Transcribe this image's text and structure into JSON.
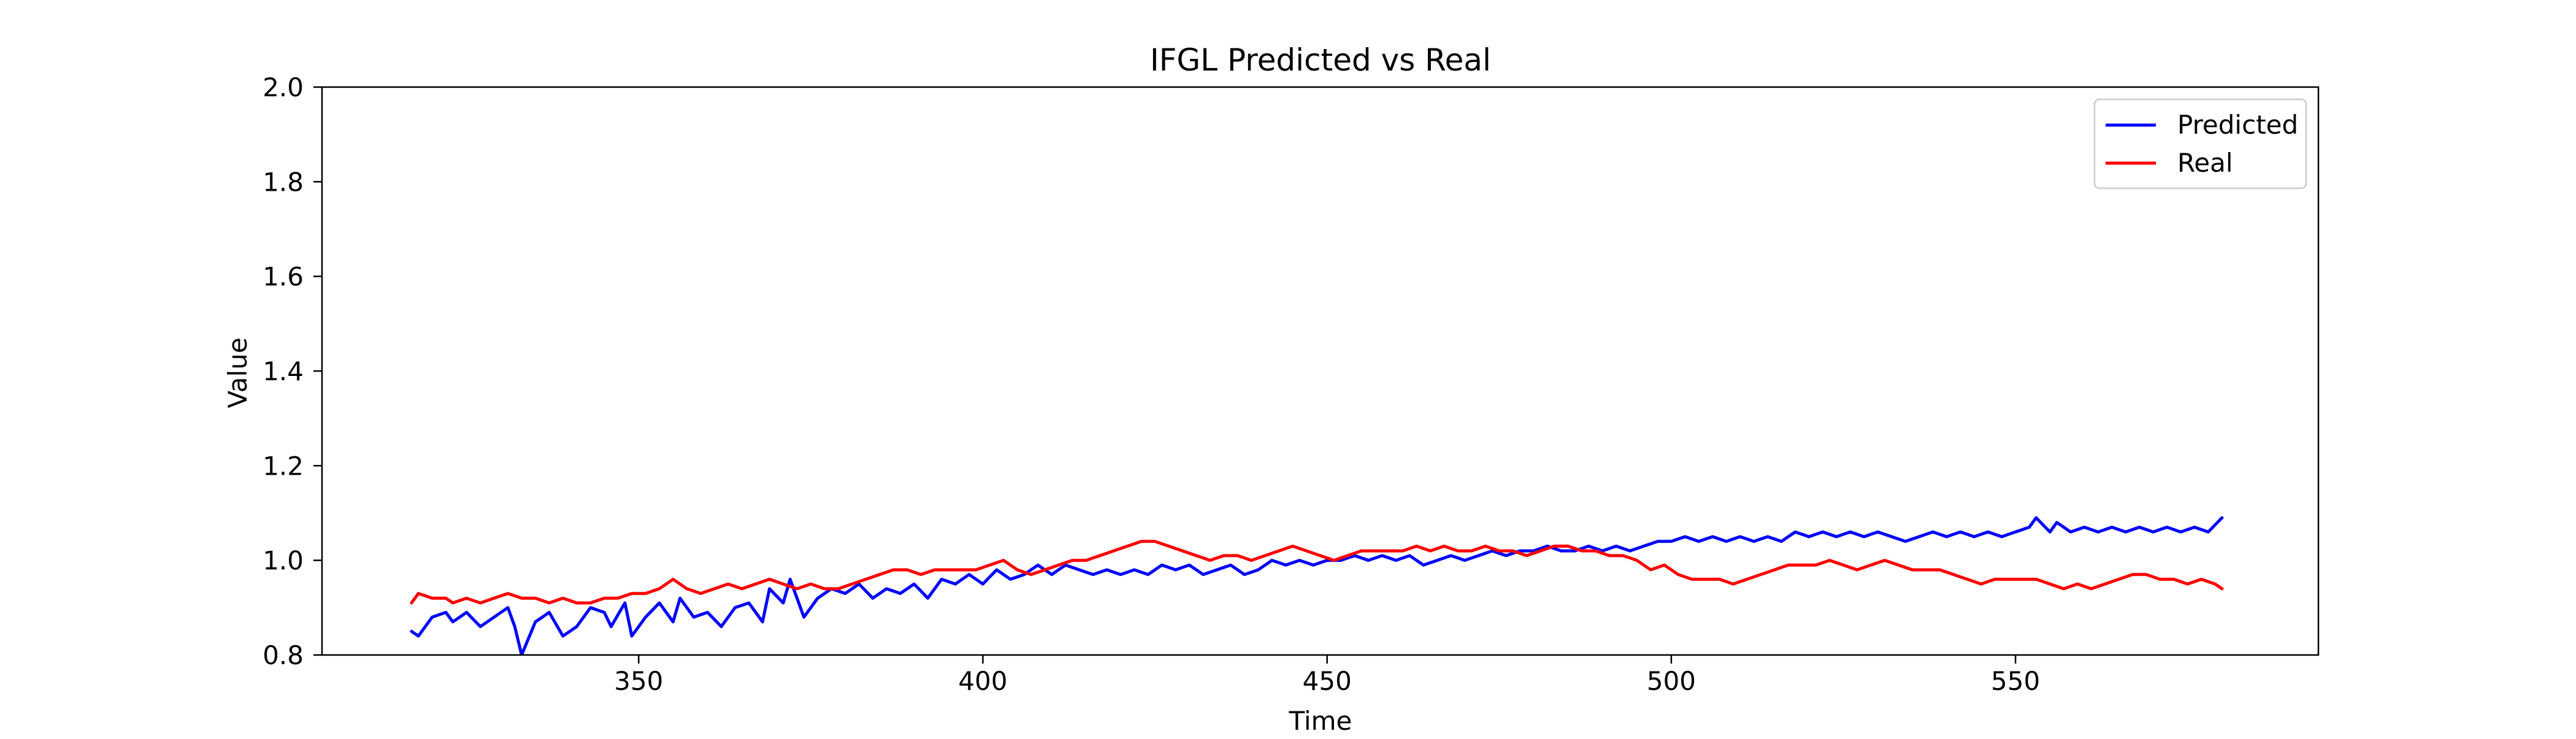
{
  "chart_data": {
    "type": "line",
    "title": "IFGL Predicted vs Real",
    "xlabel": "Time",
    "ylabel": "Value",
    "xlim": [
      304,
      594
    ],
    "ylim": [
      0.8,
      2.0
    ],
    "xticks": [
      350,
      400,
      450,
      500,
      550
    ],
    "yticks": [
      0.8,
      1.0,
      1.2,
      1.4,
      1.6,
      1.8,
      2.0
    ],
    "xtick_labels": [
      "350",
      "400",
      "450",
      "500",
      "550"
    ],
    "ytick_labels": [
      "0.8",
      "1.0",
      "1.2",
      "1.4",
      "1.6",
      "1.8",
      "2.0"
    ],
    "grid": false,
    "legend": "top-right",
    "x_start": 317,
    "x_end": 580,
    "series": [
      {
        "name": "Predicted",
        "color": "#0000ff",
        "keypoints": [
          [
            317,
            0.85
          ],
          [
            318,
            0.84
          ],
          [
            320,
            0.88
          ],
          [
            322,
            0.89
          ],
          [
            323,
            0.87
          ],
          [
            325,
            0.89
          ],
          [
            327,
            0.86
          ],
          [
            329,
            0.88
          ],
          [
            331,
            0.9
          ],
          [
            332,
            0.86
          ],
          [
            333,
            0.8
          ],
          [
            335,
            0.87
          ],
          [
            337,
            0.89
          ],
          [
            339,
            0.84
          ],
          [
            341,
            0.86
          ],
          [
            343,
            0.9
          ],
          [
            345,
            0.89
          ],
          [
            346,
            0.86
          ],
          [
            348,
            0.91
          ],
          [
            349,
            0.84
          ],
          [
            351,
            0.88
          ],
          [
            353,
            0.91
          ],
          [
            355,
            0.87
          ],
          [
            356,
            0.92
          ],
          [
            358,
            0.88
          ],
          [
            360,
            0.89
          ],
          [
            362,
            0.86
          ],
          [
            364,
            0.9
          ],
          [
            366,
            0.91
          ],
          [
            368,
            0.87
          ],
          [
            369,
            0.94
          ],
          [
            371,
            0.91
          ],
          [
            372,
            0.96
          ],
          [
            374,
            0.88
          ],
          [
            376,
            0.92
          ],
          [
            378,
            0.94
          ],
          [
            380,
            0.93
          ],
          [
            382,
            0.95
          ],
          [
            384,
            0.92
          ],
          [
            386,
            0.94
          ],
          [
            388,
            0.93
          ],
          [
            390,
            0.95
          ],
          [
            392,
            0.92
          ],
          [
            394,
            0.96
          ],
          [
            396,
            0.95
          ],
          [
            398,
            0.97
          ],
          [
            400,
            0.95
          ],
          [
            402,
            0.98
          ],
          [
            404,
            0.96
          ],
          [
            406,
            0.97
          ],
          [
            408,
            0.99
          ],
          [
            410,
            0.97
          ],
          [
            412,
            0.99
          ],
          [
            414,
            0.98
          ],
          [
            416,
            0.97
          ],
          [
            418,
            0.98
          ],
          [
            420,
            0.97
          ],
          [
            422,
            0.98
          ],
          [
            424,
            0.97
          ],
          [
            426,
            0.99
          ],
          [
            428,
            0.98
          ],
          [
            430,
            0.99
          ],
          [
            432,
            0.97
          ],
          [
            434,
            0.98
          ],
          [
            436,
            0.99
          ],
          [
            438,
            0.97
          ],
          [
            440,
            0.98
          ],
          [
            442,
            1.0
          ],
          [
            444,
            0.99
          ],
          [
            446,
            1.0
          ],
          [
            448,
            0.99
          ],
          [
            450,
            1.0
          ],
          [
            452,
            1.0
          ],
          [
            454,
            1.01
          ],
          [
            456,
            1.0
          ],
          [
            458,
            1.01
          ],
          [
            460,
            1.0
          ],
          [
            462,
            1.01
          ],
          [
            464,
            0.99
          ],
          [
            466,
            1.0
          ],
          [
            468,
            1.01
          ],
          [
            470,
            1.0
          ],
          [
            472,
            1.01
          ],
          [
            474,
            1.02
          ],
          [
            476,
            1.01
          ],
          [
            478,
            1.02
          ],
          [
            480,
            1.02
          ],
          [
            482,
            1.03
          ],
          [
            484,
            1.02
          ],
          [
            486,
            1.02
          ],
          [
            488,
            1.03
          ],
          [
            490,
            1.02
          ],
          [
            492,
            1.03
          ],
          [
            494,
            1.02
          ],
          [
            496,
            1.03
          ],
          [
            498,
            1.04
          ],
          [
            500,
            1.04
          ],
          [
            502,
            1.05
          ],
          [
            504,
            1.04
          ],
          [
            506,
            1.05
          ],
          [
            508,
            1.04
          ],
          [
            510,
            1.05
          ],
          [
            512,
            1.04
          ],
          [
            514,
            1.05
          ],
          [
            516,
            1.04
          ],
          [
            518,
            1.06
          ],
          [
            520,
            1.05
          ],
          [
            522,
            1.06
          ],
          [
            524,
            1.05
          ],
          [
            526,
            1.06
          ],
          [
            528,
            1.05
          ],
          [
            530,
            1.06
          ],
          [
            532,
            1.05
          ],
          [
            534,
            1.04
          ],
          [
            536,
            1.05
          ],
          [
            538,
            1.06
          ],
          [
            540,
            1.05
          ],
          [
            542,
            1.06
          ],
          [
            544,
            1.05
          ],
          [
            546,
            1.06
          ],
          [
            548,
            1.05
          ],
          [
            550,
            1.06
          ],
          [
            552,
            1.07
          ],
          [
            553,
            1.09
          ],
          [
            555,
            1.06
          ],
          [
            556,
            1.08
          ],
          [
            558,
            1.06
          ],
          [
            560,
            1.07
          ],
          [
            562,
            1.06
          ],
          [
            564,
            1.07
          ],
          [
            566,
            1.06
          ],
          [
            568,
            1.07
          ],
          [
            570,
            1.06
          ],
          [
            572,
            1.07
          ],
          [
            574,
            1.06
          ],
          [
            576,
            1.07
          ],
          [
            578,
            1.06
          ],
          [
            580,
            1.09
          ]
        ]
      },
      {
        "name": "Real",
        "color": "#ff0000",
        "keypoints": [
          [
            317,
            0.91
          ],
          [
            318,
            0.93
          ],
          [
            320,
            0.92
          ],
          [
            322,
            0.92
          ],
          [
            323,
            0.91
          ],
          [
            325,
            0.92
          ],
          [
            327,
            0.91
          ],
          [
            329,
            0.92
          ],
          [
            331,
            0.93
          ],
          [
            333,
            0.92
          ],
          [
            335,
            0.92
          ],
          [
            337,
            0.91
          ],
          [
            339,
            0.92
          ],
          [
            341,
            0.91
          ],
          [
            343,
            0.91
          ],
          [
            345,
            0.92
          ],
          [
            347,
            0.92
          ],
          [
            349,
            0.93
          ],
          [
            351,
            0.93
          ],
          [
            353,
            0.94
          ],
          [
            355,
            0.96
          ],
          [
            357,
            0.94
          ],
          [
            359,
            0.93
          ],
          [
            361,
            0.94
          ],
          [
            363,
            0.95
          ],
          [
            365,
            0.94
          ],
          [
            367,
            0.95
          ],
          [
            369,
            0.96
          ],
          [
            371,
            0.95
          ],
          [
            373,
            0.94
          ],
          [
            375,
            0.95
          ],
          [
            377,
            0.94
          ],
          [
            379,
            0.94
          ],
          [
            381,
            0.95
          ],
          [
            383,
            0.96
          ],
          [
            385,
            0.97
          ],
          [
            387,
            0.98
          ],
          [
            389,
            0.98
          ],
          [
            391,
            0.97
          ],
          [
            393,
            0.98
          ],
          [
            395,
            0.98
          ],
          [
            397,
            0.98
          ],
          [
            399,
            0.98
          ],
          [
            401,
            0.99
          ],
          [
            403,
            1.0
          ],
          [
            405,
            0.98
          ],
          [
            407,
            0.97
          ],
          [
            409,
            0.98
          ],
          [
            411,
            0.99
          ],
          [
            413,
            1.0
          ],
          [
            415,
            1.0
          ],
          [
            417,
            1.01
          ],
          [
            419,
            1.02
          ],
          [
            421,
            1.03
          ],
          [
            423,
            1.04
          ],
          [
            425,
            1.04
          ],
          [
            427,
            1.03
          ],
          [
            429,
            1.02
          ],
          [
            431,
            1.01
          ],
          [
            433,
            1.0
          ],
          [
            435,
            1.01
          ],
          [
            437,
            1.01
          ],
          [
            439,
            1.0
          ],
          [
            441,
            1.01
          ],
          [
            443,
            1.02
          ],
          [
            445,
            1.03
          ],
          [
            447,
            1.02
          ],
          [
            449,
            1.01
          ],
          [
            451,
            1.0
          ],
          [
            453,
            1.01
          ],
          [
            455,
            1.02
          ],
          [
            457,
            1.02
          ],
          [
            459,
            1.02
          ],
          [
            461,
            1.02
          ],
          [
            463,
            1.03
          ],
          [
            465,
            1.02
          ],
          [
            467,
            1.03
          ],
          [
            469,
            1.02
          ],
          [
            471,
            1.02
          ],
          [
            473,
            1.03
          ],
          [
            475,
            1.02
          ],
          [
            477,
            1.02
          ],
          [
            479,
            1.01
          ],
          [
            481,
            1.02
          ],
          [
            483,
            1.03
          ],
          [
            485,
            1.03
          ],
          [
            487,
            1.02
          ],
          [
            489,
            1.02
          ],
          [
            491,
            1.01
          ],
          [
            493,
            1.01
          ],
          [
            495,
            1.0
          ],
          [
            497,
            0.98
          ],
          [
            499,
            0.99
          ],
          [
            501,
            0.97
          ],
          [
            503,
            0.96
          ],
          [
            505,
            0.96
          ],
          [
            507,
            0.96
          ],
          [
            509,
            0.95
          ],
          [
            511,
            0.96
          ],
          [
            513,
            0.97
          ],
          [
            515,
            0.98
          ],
          [
            517,
            0.99
          ],
          [
            519,
            0.99
          ],
          [
            521,
            0.99
          ],
          [
            523,
            1.0
          ],
          [
            525,
            0.99
          ],
          [
            527,
            0.98
          ],
          [
            529,
            0.99
          ],
          [
            531,
            1.0
          ],
          [
            533,
            0.99
          ],
          [
            535,
            0.98
          ],
          [
            537,
            0.98
          ],
          [
            539,
            0.98
          ],
          [
            541,
            0.97
          ],
          [
            543,
            0.96
          ],
          [
            545,
            0.95
          ],
          [
            547,
            0.96
          ],
          [
            549,
            0.96
          ],
          [
            551,
            0.96
          ],
          [
            553,
            0.96
          ],
          [
            555,
            0.95
          ],
          [
            557,
            0.94
          ],
          [
            559,
            0.95
          ],
          [
            561,
            0.94
          ],
          [
            563,
            0.95
          ],
          [
            565,
            0.96
          ],
          [
            567,
            0.97
          ],
          [
            569,
            0.97
          ],
          [
            571,
            0.96
          ],
          [
            573,
            0.96
          ],
          [
            575,
            0.95
          ],
          [
            577,
            0.96
          ],
          [
            579,
            0.95
          ],
          [
            580,
            0.94
          ]
        ]
      }
    ]
  }
}
